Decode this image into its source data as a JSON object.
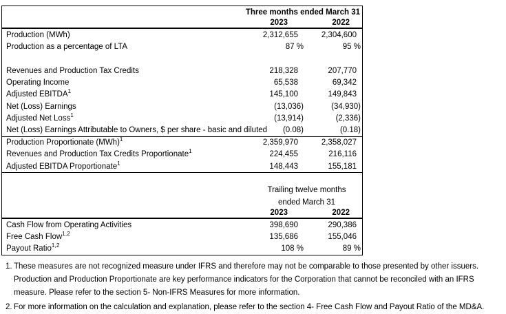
{
  "table1": {
    "period_header": "Three months ended March 31",
    "col_years": [
      "2023",
      "2022"
    ],
    "rows": [
      {
        "label": "Production (MWh)",
        "sup": "",
        "v2023": "2,312,655",
        "v2022": "2,304,600"
      },
      {
        "label": "Production as a percentage of LTA",
        "sup": "",
        "v2023": "87 %",
        "v2022": "95 %"
      },
      {
        "label": "Revenues and Production Tax Credits",
        "sup": "",
        "v2023": "218,328",
        "v2022": "207,770"
      },
      {
        "label": "Operating Income",
        "sup": "",
        "v2023": "65,538",
        "v2022": "69,342"
      },
      {
        "label": "Adjusted EBITDA",
        "sup": "1",
        "v2023": "145,100",
        "v2022": "149,843"
      },
      {
        "label": "Net (Loss) Earnings",
        "sup": "",
        "v2023": "(13,036)",
        "v2022": "(34,930)"
      },
      {
        "label": "Adjusted Net Loss",
        "sup": "1",
        "v2023": "(13,914)",
        "v2022": "(2,336)"
      },
      {
        "label": "Net (Loss) Earnings Attributable to Owners, $ per share - basic and diluted",
        "sup": "",
        "v2023": "(0.08)",
        "v2022": "(0.18)"
      },
      {
        "label": "Production Proportionate (MWh)",
        "sup": "1",
        "v2023": "2,359,970",
        "v2022": "2,358,027"
      },
      {
        "label": "Revenues and Production Tax Credits Proportionate",
        "sup": "1",
        "v2023": "224,455",
        "v2022": "216,116"
      },
      {
        "label": "Adjusted EBITDA Proportionate",
        "sup": "1",
        "v2023": "148,443",
        "v2022": "155,181"
      }
    ]
  },
  "table2": {
    "period_header_line1": "Trailing twelve months",
    "period_header_line2": "ended March 31",
    "col_years": [
      "2023",
      "2022"
    ],
    "rows": [
      {
        "label": "Cash Flow from Operating Activities",
        "sup": "",
        "v2023": "398,690",
        "v2022": "290,386"
      },
      {
        "label": "Free Cash Flow",
        "sup": "1,2",
        "v2023": "135,686",
        "v2022": "155,046"
      },
      {
        "label": "Payout Ratio",
        "sup": "1,2",
        "v2023": "108 %",
        "v2022": "89 %"
      }
    ]
  },
  "footnotes": [
    {
      "num": "1.",
      "text": "These measures are not recognized measure under IFRS and therefore may not be comparable to those presented by other issuers. Production and Production Proportionate are key performance indicators for the Corporation that cannot be reconciled with an IFRS measure. Please refer to the section 5- Non-IFRS Measures for more information."
    },
    {
      "num": "2.",
      "text": "For more information on the calculation and explanation, please refer to the section 4- Free Cash Flow and Payout Ratio of the MD&A."
    }
  ]
}
